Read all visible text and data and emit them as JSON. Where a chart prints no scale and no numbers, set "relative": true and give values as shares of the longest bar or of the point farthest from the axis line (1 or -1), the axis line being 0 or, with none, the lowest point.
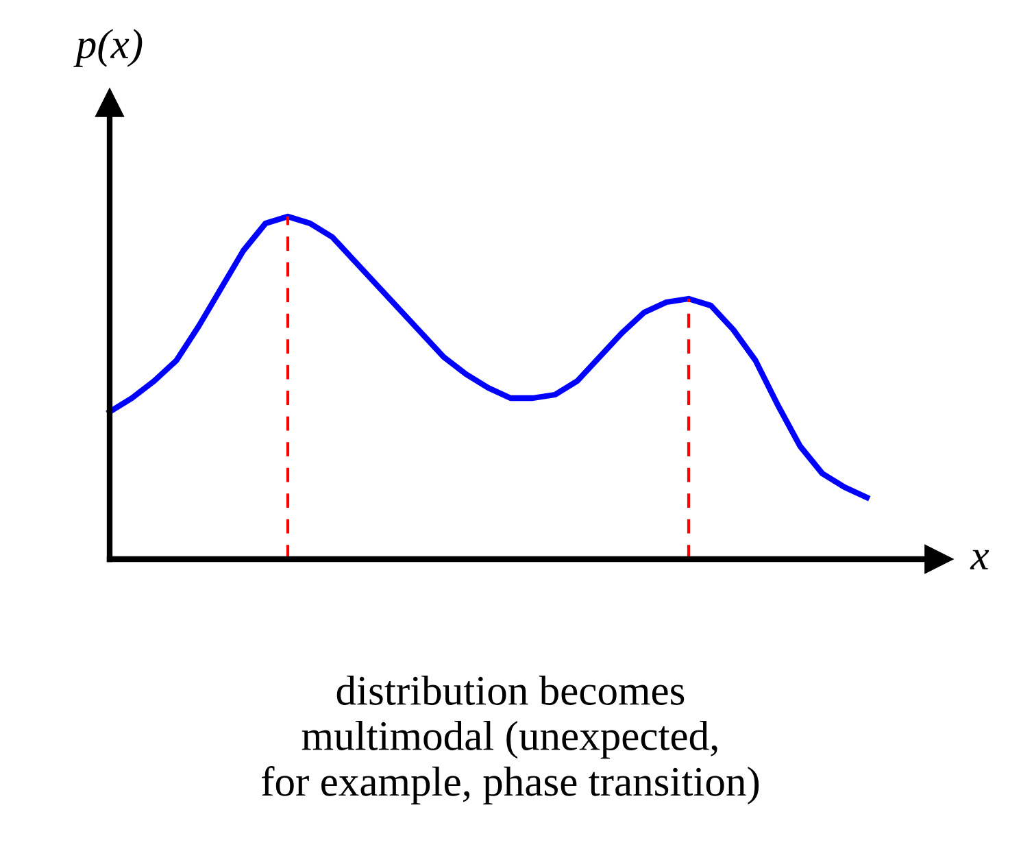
{
  "chart_data": {
    "type": "line",
    "relative": true,
    "ylabel": "p(x)",
    "xlabel": "x",
    "categories": [
      null,
      null,
      null,
      null,
      null,
      null,
      null,
      null,
      null,
      null,
      null,
      null,
      null,
      null,
      null,
      null,
      null,
      null,
      null,
      null,
      null,
      null,
      null,
      null,
      null,
      null,
      null,
      null,
      null,
      null,
      null,
      null,
      null,
      null,
      null
    ],
    "series": [
      {
        "color": "#0000ff",
        "values": [
          0.43,
          0.47,
          0.52,
          0.58,
          0.68,
          0.79,
          0.9,
          0.98,
          1.0,
          0.98,
          0.94,
          0.87,
          0.8,
          0.73,
          0.66,
          0.59,
          0.54,
          0.5,
          0.47,
          0.47,
          0.48,
          0.52,
          0.59,
          0.66,
          0.72,
          0.75,
          0.76,
          0.74,
          0.67,
          0.58,
          0.45,
          0.33,
          0.25,
          0.21,
          0.18
        ]
      }
    ],
    "annotations": [
      "distribution becomes\nmultimodal (unexpected,\nfor example, phase transition)"
    ],
    "grid": false,
    "legend": false,
    "marker": "none",
    "line_style": "solid"
  }
}
